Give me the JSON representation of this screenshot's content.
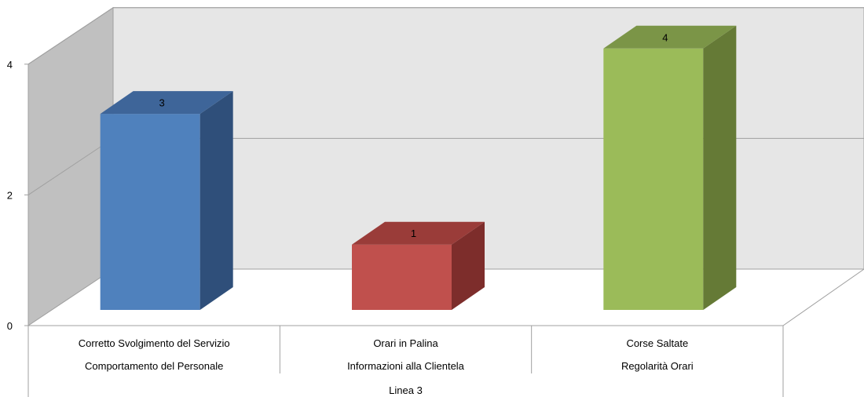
{
  "chart_data": {
    "type": "bar",
    "title": "",
    "xlabel": "",
    "ylabel": "",
    "ylim": [
      0,
      4
    ],
    "yticks": [
      0,
      2,
      4
    ],
    "grid": true,
    "categories": [
      {
        "level1": "Corretto Svolgimento del Servizio",
        "level2": "Comportamento del Personale"
      },
      {
        "level1": "Orari in Palina",
        "level2": "Informazioni alla Clientela"
      },
      {
        "level1": "Corse Saltate",
        "level2": "Regolarità Orari"
      }
    ],
    "group_label": "Linea 3",
    "values": [
      3,
      1,
      4
    ],
    "colors": {
      "bars": [
        "#4f81bd",
        "#c0504d",
        "#9bbb59"
      ],
      "bars_side": [
        "#2f4f7a",
        "#7d2d2b",
        "#657a36"
      ],
      "bars_top": [
        "#3e6599",
        "#9a3c39",
        "#7b9547"
      ],
      "wall_back": "#e6e6e6",
      "wall_side": "#c0c0c0",
      "floor": "#ffffff",
      "axis": "#a0a0a0"
    }
  }
}
